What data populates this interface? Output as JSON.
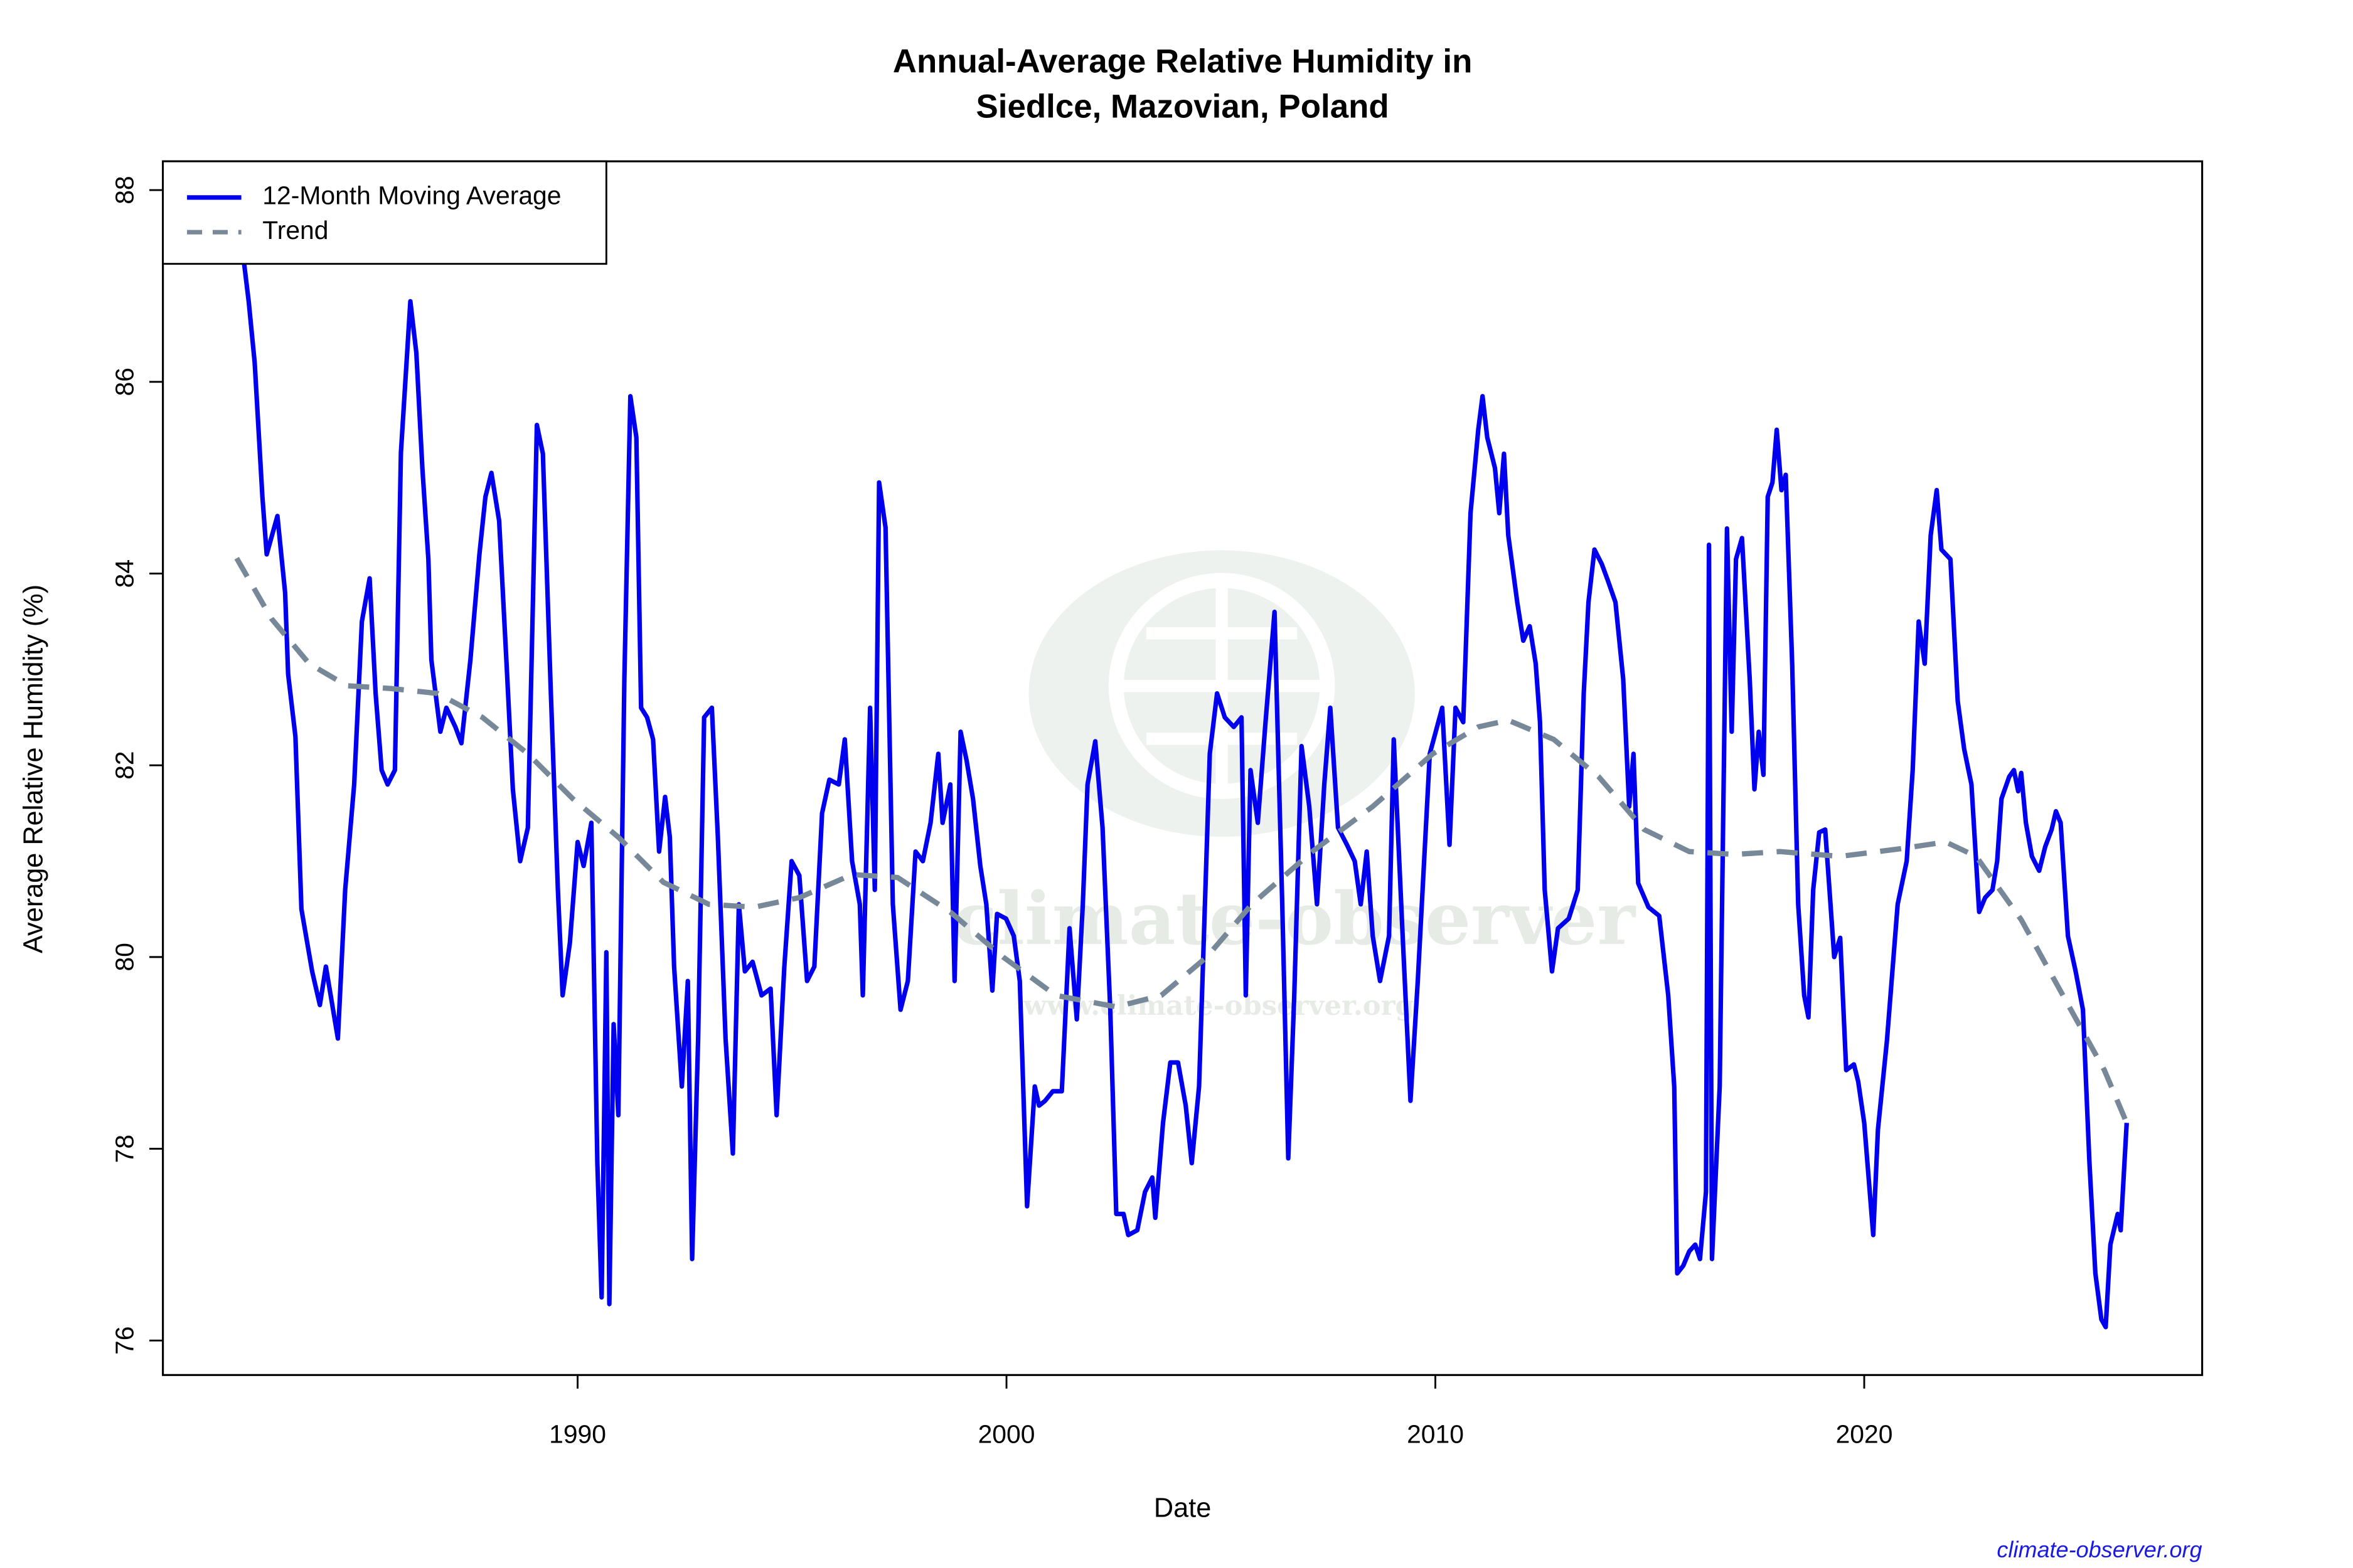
{
  "chart_data": {
    "type": "line",
    "title": [
      "Annual-Average Relative Humidity in",
      "Siedlce, Mazovian, Poland"
    ],
    "x_label": "Date",
    "y_label": "Average Relative Humidity (%)",
    "xlim": [
      1980.33,
      2027.88
    ],
    "ylim": [
      75.64,
      88.3
    ],
    "xticks": [
      1990,
      2000,
      2010,
      2020
    ],
    "yticks": [
      76,
      78,
      80,
      82,
      84,
      86,
      88
    ],
    "legend": "top-left",
    "series": [
      {
        "name": "12-Month Moving Average",
        "color": "#0000ee",
        "dash": "solid",
        "x": [
          1982.16,
          1982.33,
          1982.47,
          1982.65,
          1982.75,
          1983.0,
          1983.18,
          1983.25,
          1983.42,
          1983.56,
          1983.81,
          1983.99,
          1984.13,
          1984.41,
          1984.58,
          1984.79,
          1984.97,
          1985.15,
          1985.29,
          1985.43,
          1985.57,
          1985.74,
          1985.88,
          1986.1,
          1986.24,
          1986.38,
          1986.52,
          1986.59,
          1986.8,
          1986.94,
          1987.15,
          1987.29,
          1987.5,
          1987.71,
          1987.85,
          1987.99,
          1988.17,
          1988.35,
          1988.49,
          1988.66,
          1988.84,
          1989.05,
          1989.19,
          1989.37,
          1989.54,
          1989.65,
          1989.82,
          1990.0,
          1990.14,
          1990.32,
          1990.46,
          1990.56,
          1990.67,
          1990.74,
          1990.84,
          1990.95,
          1991.09,
          1991.23,
          1991.37,
          1991.48,
          1991.62,
          1991.76,
          1991.9,
          1992.04,
          1992.15,
          1992.25,
          1992.43,
          1992.57,
          1992.67,
          1992.81,
          1992.95,
          1993.13,
          1993.27,
          1993.45,
          1993.62,
          1993.76,
          1993.9,
          1994.08,
          1994.29,
          1994.5,
          1994.64,
          1994.82,
          1994.99,
          1995.17,
          1995.35,
          1995.52,
          1995.7,
          1995.87,
          1996.09,
          1996.23,
          1996.4,
          1996.58,
          1996.65,
          1996.82,
          1996.93,
          1997.03,
          1997.18,
          1997.35,
          1997.53,
          1997.7,
          1997.88,
          1998.05,
          1998.23,
          1998.41,
          1998.51,
          1998.69,
          1998.79,
          1998.93,
          1999.07,
          1999.22,
          1999.39,
          1999.53,
          1999.67,
          1999.78,
          1999.99,
          2000.17,
          2000.31,
          2000.48,
          2000.66,
          2000.76,
          2000.9,
          2001.08,
          2001.29,
          2001.47,
          2001.64,
          2001.78,
          2001.89,
          2002.07,
          2002.24,
          2002.42,
          2002.56,
          2002.73,
          2002.84,
          2003.05,
          2003.23,
          2003.4,
          2003.47,
          2003.65,
          2003.82,
          2004.0,
          2004.18,
          2004.32,
          2004.49,
          2004.74,
          2004.91,
          2005.09,
          2005.3,
          2005.48,
          2005.58,
          2005.69,
          2005.86,
          2006.04,
          2006.25,
          2006.43,
          2006.57,
          2006.71,
          2006.88,
          2007.06,
          2007.24,
          2007.41,
          2007.55,
          2007.73,
          2007.94,
          2008.12,
          2008.26,
          2008.4,
          2008.54,
          2008.71,
          2008.92,
          2009.03,
          2009.24,
          2009.42,
          2009.59,
          2009.87,
          2010.16,
          2010.33,
          2010.47,
          2010.65,
          2010.82,
          2011.0,
          2011.1,
          2011.21,
          2011.39,
          2011.49,
          2011.6,
          2011.7,
          2011.91,
          2012.05,
          2012.2,
          2012.34,
          2012.44,
          2012.55,
          2012.72,
          2012.86,
          2013.11,
          2013.32,
          2013.46,
          2013.57,
          2013.71,
          2013.88,
          2014.02,
          2014.2,
          2014.38,
          2014.52,
          2014.62,
          2014.73,
          2014.97,
          2015.22,
          2015.43,
          2015.57,
          2015.64,
          2015.78,
          2015.92,
          2016.06,
          2016.17,
          2016.31,
          2016.38,
          2016.45,
          2016.63,
          2016.8,
          2016.91,
          2017.01,
          2017.15,
          2017.33,
          2017.44,
          2017.54,
          2017.65,
          2017.75,
          2017.86,
          2017.96,
          2018.07,
          2018.17,
          2018.32,
          2018.46,
          2018.6,
          2018.7,
          2018.81,
          2018.95,
          2019.09,
          2019.19,
          2019.3,
          2019.44,
          2019.58,
          2019.76,
          2019.86,
          2020.0,
          2020.21,
          2020.32,
          2020.53,
          2020.78,
          2020.99,
          2021.13,
          2021.27,
          2021.41,
          2021.55,
          2021.69,
          2021.8,
          2022.01,
          2022.18,
          2022.33,
          2022.5,
          2022.68,
          2022.82,
          2022.99,
          2023.1,
          2023.2,
          2023.38,
          2023.49,
          2023.59,
          2023.66,
          2023.77,
          2023.91,
          2024.08,
          2024.22,
          2024.37,
          2024.47,
          2024.58,
          2024.75,
          2024.93,
          2025.1,
          2025.25,
          2025.39,
          2025.53,
          2025.63,
          2025.74,
          2025.91,
          2025.98,
          2026.12
        ],
        "values": [
          87.47,
          86.84,
          86.2,
          84.8,
          84.2,
          84.6,
          83.8,
          82.95,
          82.3,
          80.5,
          79.85,
          79.5,
          79.9,
          79.15,
          80.7,
          81.8,
          83.5,
          83.95,
          82.75,
          81.95,
          81.8,
          81.95,
          85.26,
          86.84,
          86.3,
          85.1,
          84.15,
          83.1,
          82.35,
          82.6,
          82.4,
          82.23,
          83.1,
          84.2,
          84.8,
          85.05,
          84.55,
          83.0,
          81.75,
          81.0,
          81.35,
          85.55,
          85.25,
          82.83,
          80.7,
          79.6,
          80.15,
          81.2,
          80.95,
          81.4,
          77.85,
          76.45,
          80.05,
          76.38,
          79.3,
          78.35,
          82.9,
          85.85,
          85.42,
          82.6,
          82.5,
          82.27,
          81.1,
          81.67,
          81.25,
          79.9,
          78.65,
          79.75,
          76.85,
          79.15,
          82.5,
          82.6,
          81.25,
          79.15,
          77.95,
          80.55,
          79.85,
          79.95,
          79.6,
          79.67,
          78.35,
          79.9,
          81.0,
          80.85,
          79.75,
          79.9,
          81.5,
          81.85,
          81.8,
          82.27,
          81.0,
          80.55,
          79.6,
          82.6,
          80.7,
          84.95,
          84.48,
          80.55,
          79.45,
          79.75,
          81.1,
          81.0,
          81.4,
          82.12,
          81.4,
          81.8,
          79.75,
          82.35,
          82.05,
          81.65,
          80.95,
          80.55,
          79.65,
          80.45,
          80.4,
          80.22,
          79.75,
          77.4,
          78.65,
          78.45,
          78.5,
          78.6,
          78.6,
          80.3,
          79.35,
          80.55,
          81.8,
          82.25,
          81.35,
          79.45,
          77.32,
          77.32,
          77.1,
          77.15,
          77.55,
          77.7,
          77.28,
          78.27,
          78.9,
          78.9,
          78.45,
          77.85,
          78.65,
          82.12,
          82.75,
          82.5,
          82.4,
          82.5,
          79.6,
          81.95,
          81.4,
          82.45,
          83.6,
          80.55,
          77.9,
          79.6,
          82.2,
          81.57,
          80.55,
          81.8,
          82.6,
          81.35,
          81.17,
          81.0,
          80.55,
          81.1,
          80.22,
          79.75,
          80.22,
          82.27,
          80.2,
          78.5,
          79.75,
          82.12,
          82.6,
          81.17,
          82.6,
          82.45,
          84.63,
          85.5,
          85.85,
          85.42,
          85.1,
          84.63,
          85.25,
          84.4,
          83.7,
          83.3,
          83.45,
          83.06,
          82.45,
          80.7,
          79.85,
          80.3,
          80.4,
          80.7,
          82.75,
          83.7,
          84.25,
          84.1,
          83.93,
          83.7,
          82.9,
          81.57,
          82.12,
          80.77,
          80.52,
          80.43,
          79.6,
          78.65,
          76.7,
          76.78,
          76.93,
          77.0,
          76.85,
          77.55,
          84.3,
          76.85,
          78.65,
          84.47,
          82.35,
          84.15,
          84.37,
          82.9,
          81.75,
          82.35,
          81.9,
          84.8,
          84.95,
          85.5,
          84.87,
          85.03,
          83.06,
          80.55,
          79.6,
          79.37,
          80.7,
          81.3,
          81.33,
          80.7,
          80.0,
          80.2,
          78.82,
          78.88,
          78.7,
          78.27,
          77.1,
          78.2,
          79.13,
          80.55,
          81.0,
          81.95,
          83.5,
          83.06,
          84.4,
          84.87,
          84.25,
          84.15,
          82.67,
          82.17,
          81.8,
          80.47,
          80.62,
          80.7,
          81.0,
          81.65,
          81.88,
          81.95,
          81.73,
          81.92,
          81.4,
          81.05,
          80.9,
          81.15,
          81.33,
          81.52,
          81.4,
          80.22,
          79.85,
          79.45,
          77.87,
          76.7,
          76.22,
          76.14,
          77.0,
          77.32,
          77.15,
          78.27
        ]
      },
      {
        "name": "Trend",
        "color": "#778899",
        "dash": "dashed",
        "x": [
          1982.05,
          1982.86,
          1983.74,
          1984.62,
          1985.67,
          1986.73,
          1987.78,
          1988.84,
          1989.89,
          1990.95,
          1992.0,
          1993.06,
          1994.12,
          1995.17,
          1996.4,
          1997.46,
          1998.69,
          1999.92,
          2001.15,
          2002.56,
          2003.61,
          2004.67,
          2005.72,
          2007.13,
          2008.54,
          2009.94,
          2011.0,
          2011.7,
          2012.76,
          2013.81,
          2014.87,
          2015.92,
          2016.98,
          2018.03,
          2019.44,
          2020.85,
          2021.9,
          2022.61,
          2023.66,
          2024.72,
          2025.6,
          2026.12
        ],
        "values": [
          84.16,
          83.53,
          83.06,
          82.83,
          82.8,
          82.75,
          82.5,
          82.12,
          81.65,
          81.25,
          80.78,
          80.55,
          80.52,
          80.62,
          80.86,
          80.83,
          80.47,
          80.0,
          79.6,
          79.48,
          79.6,
          80.0,
          80.55,
          81.1,
          81.57,
          82.12,
          82.4,
          82.47,
          82.27,
          81.88,
          81.33,
          81.1,
          81.07,
          81.1,
          81.05,
          81.13,
          81.2,
          81.05,
          80.39,
          79.53,
          78.82,
          78.27
        ]
      }
    ]
  },
  "watermark": "climate-observer",
  "watermark_url": "www.climate-observer.org",
  "footer": "climate-observer.org"
}
